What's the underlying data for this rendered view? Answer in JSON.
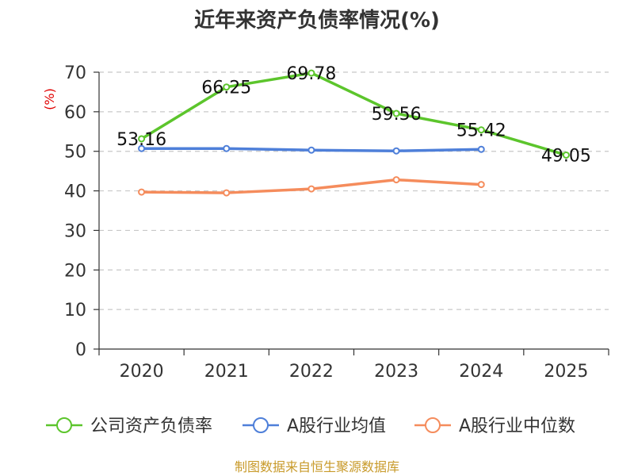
{
  "chart_data": {
    "type": "line",
    "title": "近年来资产负债率情况(%)",
    "xlabel": "",
    "ylabel": "(%)",
    "categories": [
      "2020",
      "2021",
      "2022",
      "2023",
      "2024",
      "2025"
    ],
    "ylim": [
      0,
      70
    ],
    "yticks": [
      0,
      10,
      20,
      30,
      40,
      50,
      60,
      70
    ],
    "grid": true,
    "legend": "bottom",
    "series": [
      {
        "name": "公司资产负债率",
        "color": "#5cc52c",
        "values": [
          53.16,
          66.25,
          69.78,
          59.56,
          55.42,
          49.05
        ],
        "labels": [
          "53.16",
          "66.25",
          "69.78",
          "59.56",
          "55.42",
          "49.05"
        ]
      },
      {
        "name": "A股行业均值",
        "color": "#4e7fd9",
        "values": [
          50.7,
          50.7,
          50.3,
          50.1,
          50.5,
          null
        ]
      },
      {
        "name": "A股行业中位数",
        "color": "#f58c5c",
        "values": [
          39.7,
          39.5,
          40.5,
          42.8,
          41.6,
          null
        ]
      }
    ],
    "source": "制图数据来自恒生聚源数据库"
  }
}
